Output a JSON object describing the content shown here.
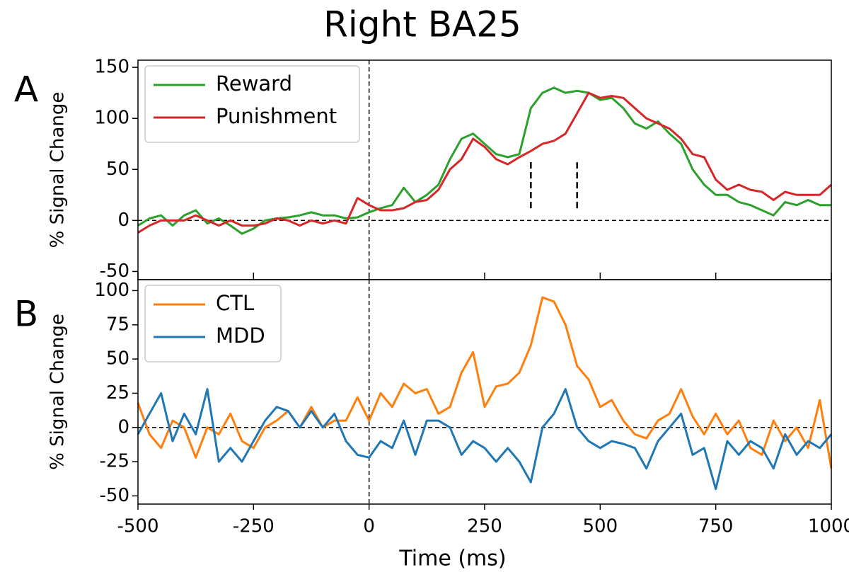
{
  "title": "Right BA25",
  "xlabel": "Time (ms)",
  "chart_data": [
    {
      "type": "line",
      "panel": "A",
      "ylabel": "% Signal Change",
      "legend": "upper left",
      "vline": 0,
      "hline": 0,
      "xlim": [
        -500,
        1000
      ],
      "ylim": [
        -58,
        157
      ],
      "xticks": [
        -500,
        -250,
        0,
        250,
        500,
        750,
        1000
      ],
      "xtick_labels": false,
      "yticks": [
        -50,
        0,
        50,
        100,
        150
      ],
      "segments": [
        {
          "x": 350,
          "ymin": 12,
          "ymax": 58
        },
        {
          "x": 450,
          "ymin": 12,
          "ymax": 58
        }
      ],
      "x": [
        -500,
        -475,
        -450,
        -425,
        -400,
        -375,
        -350,
        -325,
        -300,
        -275,
        -250,
        -225,
        -200,
        -175,
        -150,
        -125,
        -100,
        -75,
        -50,
        -25,
        0,
        25,
        50,
        75,
        100,
        125,
        150,
        175,
        200,
        225,
        250,
        275,
        300,
        325,
        350,
        375,
        400,
        425,
        450,
        475,
        500,
        525,
        550,
        575,
        600,
        625,
        650,
        675,
        700,
        725,
        750,
        775,
        800,
        825,
        850,
        875,
        900,
        925,
        950,
        975,
        1000
      ],
      "series": [
        {
          "name": "Reward",
          "color": "#2ca02c",
          "values": [
            -5,
            2,
            5,
            -5,
            5,
            10,
            -3,
            2,
            -5,
            -13,
            -8,
            0,
            2,
            3,
            5,
            8,
            5,
            5,
            2,
            3,
            8,
            12,
            15,
            32,
            18,
            25,
            35,
            60,
            80,
            85,
            75,
            65,
            62,
            65,
            110,
            125,
            130,
            125,
            127,
            125,
            118,
            120,
            110,
            95,
            90,
            97,
            85,
            75,
            50,
            35,
            25,
            25,
            18,
            15,
            10,
            5,
            18,
            15,
            20,
            15,
            15
          ]
        },
        {
          "name": "Punishment",
          "color": "#d62728",
          "values": [
            -12,
            -5,
            0,
            0,
            0,
            5,
            0,
            -5,
            0,
            -5,
            -5,
            -3,
            2,
            0,
            -5,
            0,
            -3,
            0,
            -3,
            22,
            15,
            10,
            10,
            12,
            18,
            20,
            30,
            50,
            60,
            80,
            72,
            60,
            55,
            62,
            68,
            75,
            78,
            85,
            105,
            125,
            120,
            122,
            120,
            110,
            100,
            95,
            90,
            80,
            65,
            62,
            40,
            30,
            35,
            30,
            28,
            20,
            28,
            25,
            25,
            25,
            35
          ]
        }
      ]
    },
    {
      "type": "line",
      "panel": "B",
      "ylabel": "% Signal Change",
      "legend": "upper left",
      "vline": 0,
      "hline": 0,
      "xlim": [
        -500,
        1000
      ],
      "ylim": [
        -56,
        108
      ],
      "xticks": [
        -500,
        -250,
        0,
        250,
        500,
        750,
        1000
      ],
      "xtick_labels": true,
      "yticks": [
        -50,
        -25,
        0,
        25,
        50,
        75,
        100
      ],
      "x": [
        -500,
        -475,
        -450,
        -425,
        -400,
        -375,
        -350,
        -325,
        -300,
        -275,
        -250,
        -225,
        -200,
        -175,
        -150,
        -125,
        -100,
        -75,
        -50,
        -25,
        0,
        25,
        50,
        75,
        100,
        125,
        150,
        175,
        200,
        225,
        250,
        275,
        300,
        325,
        350,
        375,
        400,
        425,
        450,
        475,
        500,
        525,
        550,
        575,
        600,
        625,
        650,
        675,
        700,
        725,
        750,
        775,
        800,
        825,
        850,
        875,
        900,
        925,
        950,
        975,
        1000
      ],
      "series": [
        {
          "name": "CTL",
          "color": "#ff7f0e",
          "values": [
            18,
            -5,
            -15,
            5,
            0,
            -22,
            0,
            -5,
            10,
            -10,
            -15,
            0,
            5,
            12,
            0,
            15,
            0,
            5,
            5,
            22,
            5,
            25,
            15,
            32,
            25,
            28,
            10,
            15,
            40,
            55,
            15,
            30,
            32,
            40,
            60,
            95,
            92,
            75,
            45,
            35,
            15,
            20,
            5,
            -5,
            -8,
            5,
            10,
            28,
            8,
            -5,
            10,
            -5,
            5,
            -15,
            -20,
            5,
            -10,
            0,
            -15,
            20,
            -30
          ]
        },
        {
          "name": "MDD",
          "color": "#1f77b4",
          "values": [
            -5,
            10,
            25,
            -10,
            10,
            -5,
            28,
            -25,
            -15,
            -25,
            -10,
            5,
            15,
            12,
            0,
            12,
            0,
            10,
            -10,
            -20,
            -22,
            -10,
            -15,
            5,
            -20,
            5,
            5,
            0,
            -20,
            -10,
            -15,
            -25,
            -15,
            -25,
            -40,
            0,
            10,
            28,
            0,
            -10,
            -15,
            -10,
            -12,
            -15,
            -30,
            -10,
            0,
            10,
            -20,
            -15,
            -45,
            -10,
            -20,
            -10,
            -15,
            -30,
            -5,
            -20,
            -10,
            -15,
            -5
          ]
        }
      ]
    }
  ]
}
